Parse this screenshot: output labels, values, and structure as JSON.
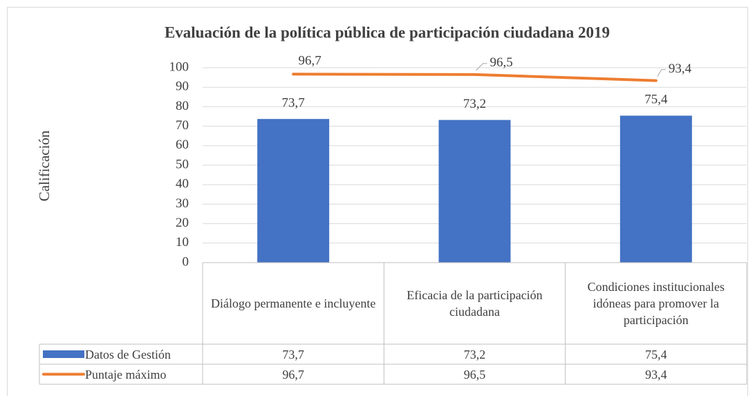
{
  "chart_data": {
    "type": "bar",
    "title": "Evaluación de la política pública de participación ciudadana 2019",
    "y_label": "Calificación",
    "categories": [
      "Diálogo permanente e incluyente",
      "Eficacia de la participación ciudadana",
      "Condiciones institucionales idóneas para promover la participación"
    ],
    "series": [
      {
        "name": "Datos de Gestión",
        "type": "bar",
        "color": "#4472c4",
        "values": [
          73.7,
          73.2,
          75.4
        ],
        "value_labels": [
          "73,7",
          "73,2",
          "75,4"
        ]
      },
      {
        "name": "Puntaje máximo",
        "type": "line",
        "color": "#ed7d31",
        "values": [
          96.7,
          96.5,
          93.4
        ],
        "value_labels": [
          "96,7",
          "96,5",
          "93,4"
        ]
      }
    ],
    "ylim": [
      0,
      100
    ],
    "yticks": [
      0,
      10,
      20,
      30,
      40,
      50,
      60,
      70,
      80,
      90,
      100
    ],
    "grid": true,
    "data_table": true
  }
}
